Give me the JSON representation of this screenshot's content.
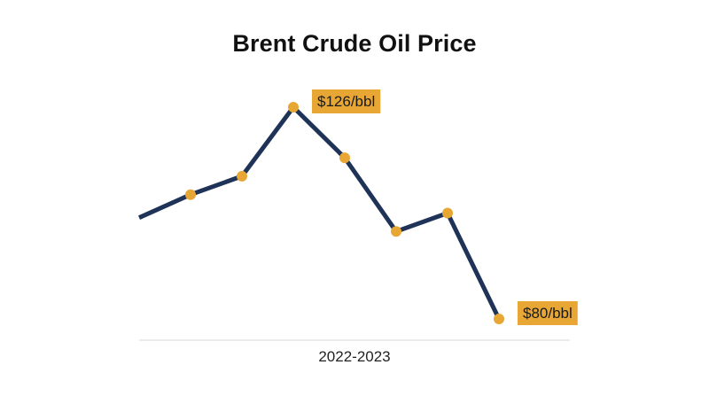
{
  "chart_data": {
    "type": "line",
    "title": "Brent Crude Oil Price",
    "xlabel": "2022-2023",
    "ylabel": "",
    "y_units": "$/bbl",
    "series": [
      {
        "values": [
          102,
          107,
          111,
          126,
          115,
          99,
          103,
          80
        ]
      }
    ],
    "marker_indices": [
      1,
      2,
      3,
      4,
      5,
      6,
      7
    ],
    "annotations": [
      {
        "point_index": 3,
        "text": "$126/bbl"
      },
      {
        "point_index": 7,
        "text": "$80/bbl"
      }
    ],
    "ylim": [
      78,
      128
    ],
    "grid": false,
    "legend": "none",
    "colors": {
      "line": "#1f3358",
      "marker": "#e8a735",
      "callout_bg": "#e8a735",
      "axis": "#d9d9d9"
    }
  }
}
